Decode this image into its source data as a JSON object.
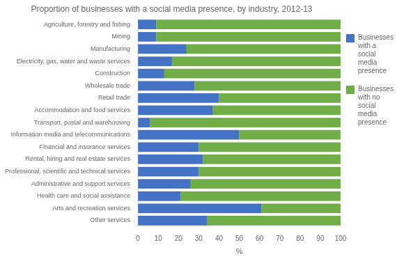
{
  "chart_data": {
    "type": "bar",
    "orientation": "horizontal",
    "stacked": true,
    "title": "Proportion of businesses with a social media presence, by industry, 2012-13",
    "xlabel": "%",
    "categories": [
      "Agriculture, forestry and fishing",
      "Mining",
      "Manufacturing",
      "Electricity, gas, water and waste services",
      "Construction",
      "Wholesale trade",
      "Retail trade",
      "Accommodation and food services",
      "Transport, postal and warehousing",
      "Information media and telecommunications",
      "Financial and insurance services",
      "Rental, hiring and real estate services",
      "Professional, scientific and technical services",
      "Administrative and support services",
      "Health care and social assistance",
      "Arts and recreation services",
      "Other services"
    ],
    "series": [
      {
        "name": "Businesses\nwith a\nsocial\nmedia\npresence",
        "color": "#4472C4",
        "values": [
          9,
          9,
          24,
          17,
          13,
          28,
          40,
          37,
          6,
          50,
          30,
          32,
          30,
          26,
          21,
          61,
          34
        ]
      },
      {
        "name": "Businesses\nwith no\nsocial\nmedia\npresence",
        "color": "#70AD47",
        "values": [
          91,
          91,
          76,
          83,
          87,
          72,
          60,
          63,
          94,
          50,
          70,
          68,
          70,
          74,
          79,
          39,
          66
        ]
      }
    ],
    "xlim": [
      0,
      100
    ],
    "xticks": [
      0,
      10,
      20,
      30,
      40,
      50,
      60,
      70,
      80,
      90,
      100
    ],
    "grid": false,
    "legend": "right"
  }
}
